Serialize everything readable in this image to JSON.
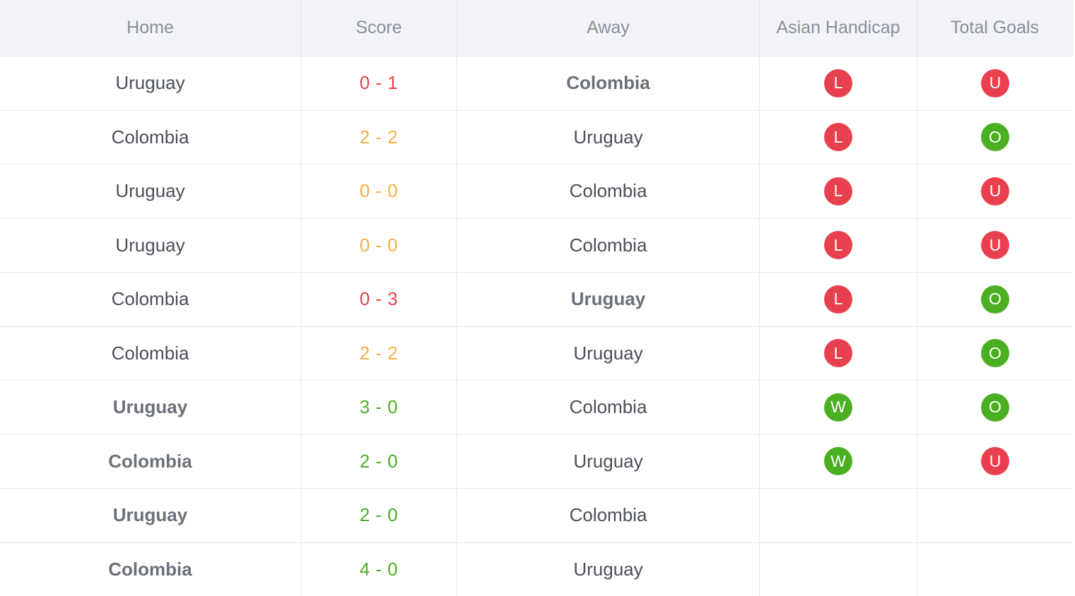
{
  "colors": {
    "red": "#e8404f",
    "green": "#4caf22",
    "orange": "#f5b041"
  },
  "headers": [
    "Home",
    "Score",
    "Away",
    "Asian Handicap",
    "Total Goals"
  ],
  "rows": [
    {
      "home": "Uruguay",
      "home_bold": false,
      "score": "0 - 1",
      "score_color": "#e8404f",
      "away": "Colombia",
      "away_bold": true,
      "ah": "L",
      "tg": "U"
    },
    {
      "home": "Colombia",
      "home_bold": false,
      "score": "2 - 2",
      "score_color": "#f5b041",
      "away": "Uruguay",
      "away_bold": false,
      "ah": "L",
      "tg": "O"
    },
    {
      "home": "Uruguay",
      "home_bold": false,
      "score": "0 - 0",
      "score_color": "#f5b041",
      "away": "Colombia",
      "away_bold": false,
      "ah": "L",
      "tg": "U"
    },
    {
      "home": "Uruguay",
      "home_bold": false,
      "score": "0 - 0",
      "score_color": "#f5b041",
      "away": "Colombia",
      "away_bold": false,
      "ah": "L",
      "tg": "U"
    },
    {
      "home": "Colombia",
      "home_bold": false,
      "score": "0 - 3",
      "score_color": "#e8404f",
      "away": "Uruguay",
      "away_bold": true,
      "ah": "L",
      "tg": "O"
    },
    {
      "home": "Colombia",
      "home_bold": false,
      "score": "2 - 2",
      "score_color": "#f5b041",
      "away": "Uruguay",
      "away_bold": false,
      "ah": "L",
      "tg": "O"
    },
    {
      "home": "Uruguay",
      "home_bold": true,
      "score": "3 - 0",
      "score_color": "#4caf22",
      "away": "Colombia",
      "away_bold": false,
      "ah": "W",
      "tg": "O"
    },
    {
      "home": "Colombia",
      "home_bold": true,
      "score": "2 - 0",
      "score_color": "#4caf22",
      "away": "Uruguay",
      "away_bold": false,
      "ah": "W",
      "tg": "U"
    },
    {
      "home": "Uruguay",
      "home_bold": true,
      "score": "2 - 0",
      "score_color": "#4caf22",
      "away": "Colombia",
      "away_bold": false,
      "ah": "",
      "tg": ""
    },
    {
      "home": "Colombia",
      "home_bold": true,
      "score": "4 - 0",
      "score_color": "#4caf22",
      "away": "Uruguay",
      "away_bold": false,
      "ah": "",
      "tg": ""
    }
  ]
}
